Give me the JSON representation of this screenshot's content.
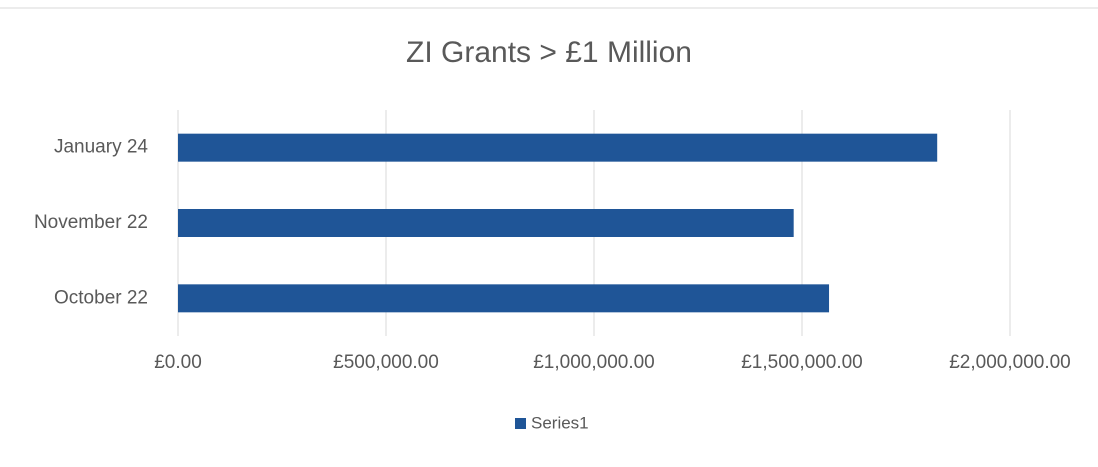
{
  "chart_data": {
    "type": "barh",
    "title": "ZI Grants > £1 Million",
    "categories": [
      "January 24",
      "November 22",
      "October 22"
    ],
    "series": [
      {
        "name": "Series1",
        "color": "#1f5597",
        "values": [
          1825000,
          1480000,
          1565000
        ]
      }
    ],
    "xlim": [
      0,
      2000000
    ],
    "xticks": [
      {
        "value": 0,
        "label": "£0.00"
      },
      {
        "value": 500000,
        "label": "£500,000.00"
      },
      {
        "value": 1000000,
        "label": "£1,000,000.00"
      },
      {
        "value": 1500000,
        "label": "£1,500,000.00"
      },
      {
        "value": 2000000,
        "label": "£2,000,000.00"
      }
    ],
    "grid": true,
    "legend": "bottom"
  }
}
